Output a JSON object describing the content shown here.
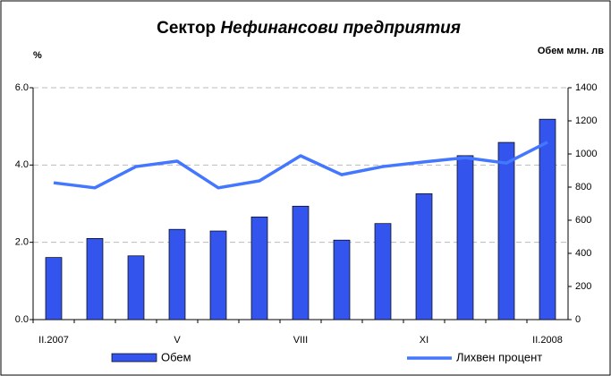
{
  "chart_data": {
    "type": "bar-line",
    "title_parts": [
      "Сектор",
      "Нефинансови предприятия"
    ],
    "ylabel": "%",
    "y2label": "Обем млн. лв",
    "categories": [
      "II.2007",
      null,
      null,
      "V",
      null,
      null,
      "VIII",
      null,
      null,
      "XI",
      null,
      null,
      "II.2008"
    ],
    "series": [
      {
        "name": "Обем",
        "type": "bar",
        "axis": "y2",
        "color": "#3355ee",
        "values": [
          375,
          490,
          385,
          545,
          535,
          620,
          685,
          480,
          580,
          760,
          990,
          1070,
          1210
        ]
      },
      {
        "name": "Лихвен процент",
        "type": "line",
        "axis": "y",
        "color": "#4477ff",
        "values": [
          3.54,
          3.41,
          3.96,
          4.1,
          3.41,
          3.59,
          4.24,
          3.75,
          3.96,
          4.08,
          4.19,
          4.05,
          4.59
        ]
      }
    ],
    "ylim": [
      0,
      6
    ],
    "yticks": [
      {
        "value": 0,
        "label": "0.0"
      },
      {
        "value": 2,
        "label": "2.0"
      },
      {
        "value": 4,
        "label": "4.0"
      },
      {
        "value": 6,
        "label": "6.0"
      }
    ],
    "y2lim": [
      0,
      1400
    ],
    "y2ticks": [
      0,
      200,
      400,
      600,
      800,
      1000,
      1200,
      1400
    ],
    "grid": true,
    "legend": "bottom"
  }
}
